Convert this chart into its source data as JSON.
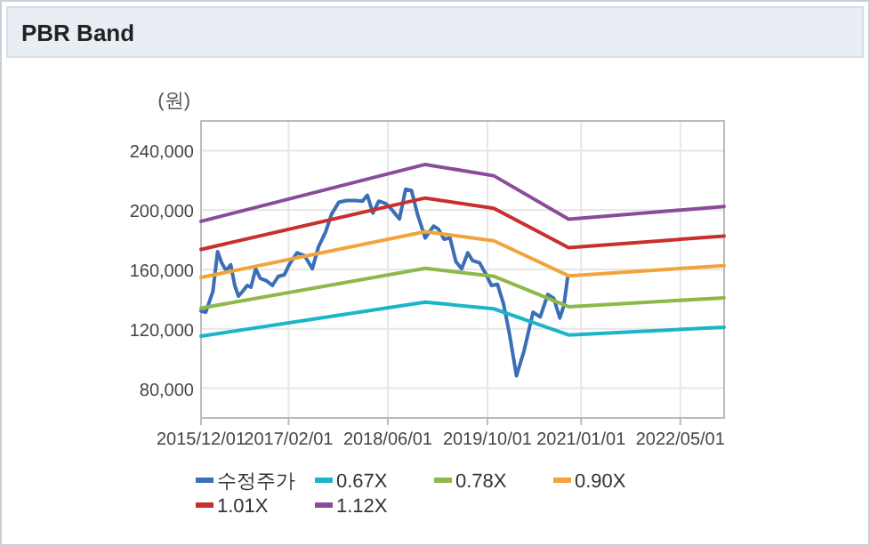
{
  "chart_data": {
    "type": "line",
    "title": "PBR Band",
    "ylabel": "(원)",
    "xlim": [
      "2015-12-01",
      "2022-12-01"
    ],
    "xticks": [
      {
        "value": "2015-12-01",
        "label": "2015/12/01"
      },
      {
        "value": "2017-02-01",
        "label": "2017/02/01"
      },
      {
        "value": "2018-06-01",
        "label": "2018/06/01"
      },
      {
        "value": "2019-10-01",
        "label": "2019/10/01"
      },
      {
        "value": "2021-01-01",
        "label": "2021/01/01"
      },
      {
        "value": "2022-05-01",
        "label": "2022/05/01"
      }
    ],
    "ylim": [
      60000,
      260000
    ],
    "yticks": [
      {
        "value": 80000,
        "label": "80,000"
      },
      {
        "value": 120000,
        "label": "120,000"
      },
      {
        "value": 160000,
        "label": "160,000"
      },
      {
        "value": 200000,
        "label": "200,000"
      },
      {
        "value": 240000,
        "label": "240,000"
      }
    ],
    "grid": true,
    "legend": "bottom",
    "marker": "none",
    "line_style": "solid",
    "series": [
      {
        "name": "수정주가",
        "color": "#3a6fb5",
        "x": [
          "2015-12-01",
          "2015-12-24",
          "2016-01-28",
          "2016-02-20",
          "2016-03-11",
          "2016-04-01",
          "2016-04-24",
          "2016-05-14",
          "2016-06-01",
          "2016-06-21",
          "2016-07-14",
          "2016-08-01",
          "2016-08-24",
          "2016-09-16",
          "2016-10-15",
          "2016-11-14",
          "2016-12-12",
          "2017-01-11",
          "2017-02-04",
          "2017-03-14",
          "2017-04-21",
          "2017-05-28",
          "2017-06-27",
          "2017-08-01",
          "2017-08-30",
          "2017-10-04",
          "2017-11-11",
          "2017-12-24",
          "2018-01-28",
          "2018-02-21",
          "2018-03-20",
          "2018-04-18",
          "2018-05-22",
          "2018-06-15",
          "2018-07-28",
          "2018-08-27",
          "2018-09-25",
          "2018-10-24",
          "2018-12-01",
          "2018-12-21",
          "2019-01-11",
          "2019-02-03",
          "2019-03-03",
          "2019-04-01",
          "2019-04-30",
          "2019-05-28",
          "2019-06-27",
          "2019-07-20",
          "2019-08-24",
          "2019-09-22",
          "2019-10-21",
          "2019-11-19",
          "2019-12-18",
          "2020-01-16",
          "2020-02-20",
          "2020-03-28",
          "2020-05-11",
          "2020-06-15",
          "2020-07-22",
          "2020-08-21",
          "2020-09-19",
          "2020-10-09",
          "2020-10-27"
        ],
        "values": [
          132000,
          131200,
          145200,
          172000,
          164400,
          159200,
          163200,
          149200,
          142000,
          145200,
          149200,
          148000,
          160400,
          154000,
          152400,
          149200,
          155200,
          156400,
          163200,
          171200,
          169200,
          160400,
          175200,
          185200,
          197200,
          205200,
          206400,
          206400,
          206000,
          210000,
          198000,
          206000,
          204400,
          201200,
          194000,
          214000,
          213200,
          197200,
          181200,
          185200,
          189200,
          187200,
          180400,
          181200,
          165200,
          160400,
          171200,
          166000,
          164400,
          157200,
          149200,
          150000,
          137200,
          117200,
          88400,
          105200,
          131200,
          128000,
          143200,
          140400,
          127200,
          136000,
          154400
        ]
      },
      {
        "name": "0.67X",
        "color": "#1cb5c8",
        "x": [
          "2015-12-01",
          "2018-12-01",
          "2019-11-01",
          "2020-11-01",
          "2022-12-01"
        ],
        "values": [
          115100,
          138000,
          133500,
          115900,
          121100
        ]
      },
      {
        "name": "0.78X",
        "color": "#8db84a",
        "x": [
          "2015-12-01",
          "2018-12-01",
          "2019-11-01",
          "2020-11-01",
          "2022-12-01"
        ],
        "values": [
          134000,
          160700,
          155400,
          134900,
          140900
        ]
      },
      {
        "name": "0.90X",
        "color": "#f2a43a",
        "x": [
          "2015-12-01",
          "2018-12-01",
          "2019-11-01",
          "2020-11-01",
          "2022-12-01"
        ],
        "values": [
          154600,
          185400,
          179300,
          155700,
          162600
        ]
      },
      {
        "name": "1.01X",
        "color": "#c8302e",
        "x": [
          "2015-12-01",
          "2018-12-01",
          "2019-11-01",
          "2020-11-01",
          "2022-12-01"
        ],
        "values": [
          173500,
          208100,
          201200,
          174700,
          182500
        ]
      },
      {
        "name": "1.12X",
        "color": "#8a4c9a",
        "x": [
          "2015-12-01",
          "2018-12-01",
          "2019-11-01",
          "2020-11-01",
          "2022-12-01"
        ],
        "values": [
          192400,
          230700,
          223100,
          193800,
          202400
        ]
      }
    ]
  }
}
